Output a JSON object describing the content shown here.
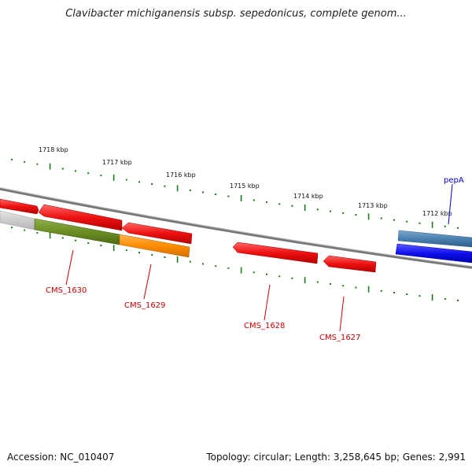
{
  "header": {
    "title": "Clavibacter michiganensis subsp. sepedonicus, complete genom..."
  },
  "footer": {
    "accession": "Accession: NC_010407",
    "summary": "Topology: circular; Length: 3,258,645 bp; Genes: 2,991"
  },
  "ruler": {
    "kbp_labels": [
      "1718 kbp",
      "1717 kbp",
      "1716 kbp",
      "1715 kbp",
      "1714 kbp",
      "1713 kbp",
      "1712 kbp"
    ],
    "tick_color": "#1a7a1a"
  },
  "genes": {
    "labelled": [
      {
        "name": "CMS_1630",
        "color": "#cc0000"
      },
      {
        "name": "CMS_1629",
        "color": "#cc0000"
      },
      {
        "name": "CMS_1628",
        "color": "#cc0000"
      },
      {
        "name": "CMS_1627",
        "color": "#cc0000"
      },
      {
        "name": "pepA",
        "color": "#0000cc"
      }
    ],
    "colors": {
      "red": "#ee1111",
      "olive": "#6b8e23",
      "orange": "#ff8c00",
      "gray": "#c8c8c8",
      "steel_blue": "#4a80b0",
      "blue": "#1010ee"
    }
  }
}
